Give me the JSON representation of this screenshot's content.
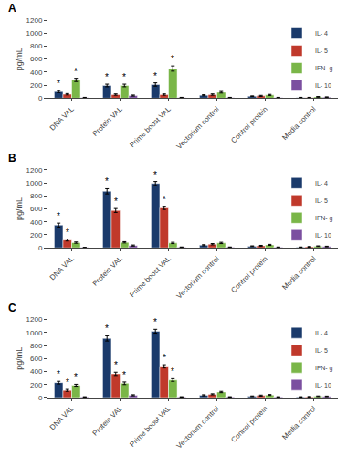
{
  "chart_data": [
    {
      "type": "bar",
      "title": "A",
      "ylabel": "pg/mL",
      "categories": [
        "DNA VAL",
        "Protein VAL",
        "Prime boost VAL",
        "Vectorium control",
        "Control protein",
        "Media control"
      ],
      "series": [
        {
          "name": "IL- 4",
          "color": "#1a3a6b",
          "values": [
            100,
            195,
            210,
            45,
            30,
            10
          ],
          "errors": [
            15,
            20,
            25,
            8,
            5,
            3
          ]
        },
        {
          "name": "IL- 5",
          "color": "#c0392b",
          "values": [
            60,
            55,
            55,
            55,
            35,
            10
          ],
          "errors": [
            10,
            10,
            10,
            10,
            8,
            3
          ]
        },
        {
          "name": "IFN- g",
          "color": "#7ab648",
          "values": [
            280,
            195,
            455,
            90,
            50,
            20
          ],
          "errors": [
            25,
            20,
            40,
            12,
            8,
            5
          ]
        },
        {
          "name": "IL- 10",
          "color": "#7b4fa0",
          "values": [
            10,
            40,
            10,
            10,
            10,
            15
          ],
          "errors": [
            3,
            8,
            3,
            3,
            3,
            5
          ]
        }
      ],
      "ylim": [
        0,
        1200
      ],
      "yticks": [
        0,
        200,
        400,
        600,
        800,
        1000,
        1200
      ],
      "grid": false,
      "legend": "upper right",
      "annotations": [
        {
          "text": "*",
          "category": "DNA VAL",
          "series": "IL- 4"
        },
        {
          "text": "*",
          "category": "Protein VAL",
          "series": "IL- 4"
        },
        {
          "text": "*",
          "category": "Prime boost VAL",
          "series": "IL- 4"
        },
        {
          "text": "*",
          "category": "DNA VAL",
          "series": "IFN- g"
        },
        {
          "text": "*",
          "category": "Protein VAL",
          "series": "IFN- g"
        },
        {
          "text": "*",
          "category": "Prime boost VAL",
          "series": "IFN- g"
        }
      ]
    },
    {
      "type": "bar",
      "title": "B",
      "ylabel": "pg/mL",
      "categories": [
        "DNA VAL",
        "Protein VAL",
        "Prime boost VAL",
        "Vectorium control",
        "Control protein",
        "Media control"
      ],
      "series": [
        {
          "name": "IL- 4",
          "color": "#1a3a6b",
          "values": [
            350,
            870,
            990,
            40,
            25,
            10
          ],
          "errors": [
            30,
            40,
            30,
            8,
            5,
            3
          ]
        },
        {
          "name": "IL- 5",
          "color": "#c0392b",
          "values": [
            120,
            575,
            615,
            55,
            30,
            15
          ],
          "errors": [
            15,
            30,
            25,
            10,
            8,
            5
          ]
        },
        {
          "name": "IFN- g",
          "color": "#7ab648",
          "values": [
            80,
            85,
            75,
            75,
            45,
            25
          ],
          "errors": [
            10,
            10,
            10,
            10,
            8,
            5
          ]
        },
        {
          "name": "IL- 10",
          "color": "#7b4fa0",
          "values": [
            5,
            35,
            10,
            10,
            10,
            20
          ],
          "errors": [
            2,
            8,
            3,
            3,
            3,
            5
          ]
        }
      ],
      "ylim": [
        0,
        1200
      ],
      "yticks": [
        0,
        200,
        400,
        600,
        800,
        1000,
        1200
      ],
      "grid": false,
      "legend": "upper right",
      "annotations": [
        {
          "text": "*",
          "category": "DNA VAL",
          "series": "IL- 4"
        },
        {
          "text": "*",
          "category": "Protein VAL",
          "series": "IL- 4"
        },
        {
          "text": "*",
          "category": "Prime boost VAL",
          "series": "IL- 4"
        },
        {
          "text": "*",
          "category": "DNA VAL",
          "series": "IL- 5"
        },
        {
          "text": "*",
          "category": "Protein VAL",
          "series": "IL- 5"
        },
        {
          "text": "*",
          "category": "Prime boost VAL",
          "series": "IL- 5"
        }
      ]
    },
    {
      "type": "bar",
      "title": "C",
      "ylabel": "pg/mL",
      "categories": [
        "DNA VAL",
        "Protein VAL",
        "Prime boost VAL",
        "Vectorium control",
        "Control protein",
        "Media control"
      ],
      "series": [
        {
          "name": "IL- 4",
          "color": "#1a3a6b",
          "values": [
            230,
            910,
            1020,
            35,
            20,
            10
          ],
          "errors": [
            20,
            40,
            30,
            8,
            5,
            3
          ]
        },
        {
          "name": "IL- 5",
          "color": "#c0392b",
          "values": [
            110,
            365,
            480,
            50,
            30,
            12
          ],
          "errors": [
            15,
            25,
            25,
            8,
            8,
            4
          ]
        },
        {
          "name": "IFN- g",
          "color": "#7ab648",
          "values": [
            190,
            220,
            270,
            85,
            40,
            20
          ],
          "errors": [
            15,
            20,
            20,
            10,
            7,
            5
          ]
        },
        {
          "name": "IL- 10",
          "color": "#7b4fa0",
          "values": [
            10,
            35,
            10,
            10,
            10,
            18
          ],
          "errors": [
            2,
            8,
            3,
            3,
            3,
            5
          ]
        }
      ],
      "ylim": [
        0,
        1200
      ],
      "yticks": [
        0,
        200,
        400,
        600,
        800,
        1000,
        1200
      ],
      "grid": false,
      "legend": "upper right",
      "annotations": [
        {
          "text": "*",
          "category": "DNA VAL",
          "series": "IL- 4"
        },
        {
          "text": "*",
          "category": "Protein VAL",
          "series": "IL- 4"
        },
        {
          "text": "*",
          "category": "Prime boost VAL",
          "series": "IL- 4"
        },
        {
          "text": "*",
          "category": "DNA VAL",
          "series": "IL- 5"
        },
        {
          "text": "*",
          "category": "Protein VAL",
          "series": "IL- 5"
        },
        {
          "text": "*",
          "category": "Prime boost VAL",
          "series": "IL- 5"
        },
        {
          "text": "*",
          "category": "DNA VAL",
          "series": "IFN- g"
        },
        {
          "text": "*",
          "category": "Protein VAL",
          "series": "IFN- g"
        },
        {
          "text": "*",
          "category": "Prime boost VAL",
          "series": "IFN- g"
        }
      ]
    }
  ]
}
